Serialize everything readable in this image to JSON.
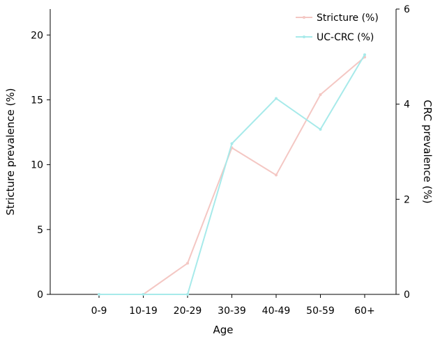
{
  "chart_data": {
    "type": "line",
    "categories": [
      "0-9",
      "10-19",
      "20-29",
      "30-39",
      "40-49",
      "50-59",
      "60+"
    ],
    "xlabel": "Age",
    "ylabel_left": "Stricture prevalence (%)",
    "ylabel_right": "CRC prevalence (%)",
    "ylim_left": [
      0,
      22
    ],
    "ylim_right": [
      0,
      6
    ],
    "yticks_left": [
      "0",
      "5",
      "10",
      "15",
      "20"
    ],
    "yticks_right": [
      "0",
      "2",
      "4",
      "6"
    ],
    "grid": false,
    "legend_position": "top-right",
    "series": [
      {
        "name": "Stricture (%)",
        "axis": "left",
        "color": "#f4c7c3",
        "values": [
          0,
          0,
          2.4,
          11.3,
          9.2,
          15.4,
          18.3
        ]
      },
      {
        "name": "UC-CRC (%)",
        "axis": "right",
        "color": "#a7eaea",
        "values": [
          0,
          0,
          0,
          3.17,
          4.12,
          3.47,
          5.04
        ]
      }
    ]
  }
}
